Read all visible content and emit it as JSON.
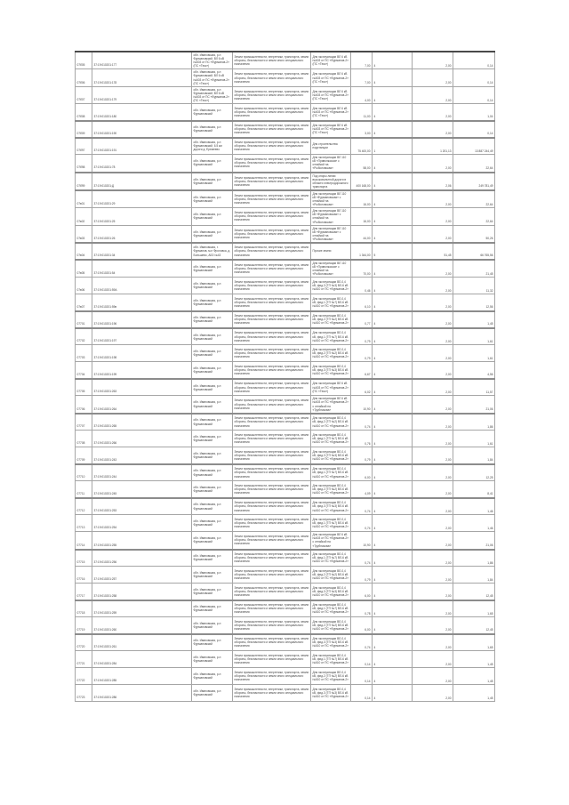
{
  "document": {
    "kind": "land-parcel valuation table (continuation page, no visible headers)",
    "language": "ru"
  },
  "colors": {
    "page_background": "#ffffff",
    "grid_border": "#a6a6a6",
    "thick_border": "#8c8c8c",
    "outer_border": "#6f6f6f",
    "text": "#3f3f3f"
  },
  "addresses": {
    "A1": "обл. Ивановская, р-н Фурмановский, ВЛ 6 кВ №603 от ПС «Фурманов-2» (ПС «Текс»)",
    "A2": "обл. Ивановская, р-н Фурмановский",
    "A3": "обл. Ивановская, р-н Фурмановский, 6.5 км дороги д. Еремеево",
    "A4": "обл. Ивановская, г. Фурманов, м-н Фроловка, д. Большево, АБЗ №43"
  },
  "shared": {
    "category": "Земли промышленности, энергетики, транспорта, земли обороны, безопасности и земли иного специального назначения"
  },
  "uses": {
    "U1": "Для эксплуатации ВЛ 6 кВ №603 от ПС «Фурманов-2» (ПС «Текс»)",
    "U2": "Для строительства подстанции",
    "U3": "Для эксплуатации ВЛ 110 кВ «Приволжская» с отпайкой на «Рыболовская»",
    "U4": "Под опоры линии высоковольтной дороги в области электродорожного транспорта",
    "U5": "Для эксплуатации ВЛ 110 кВ «Фурмановская» с отпайкой на «Рыболовская»",
    "U6": "Прочие земли",
    "U7": "Для эксплуатации ВЛ-0,4 кВ, фид.1 (ТП №7) ВЛ-6 кВ №610 от ПС «Фурманов-2»",
    "U8": "Для эксплуатации ВЛ-0,4 кВ, фид.2 (ТП №2) ВЛ-6 кВ №610 от ПС «Фурманов-2»",
    "U9": "Для эксплуатации ВЛ-0,4 кВ, фид.3 (ТП №3) ВЛ-6 кВ №610 от ПС «Фурманов-2»",
    "U10": "Для эксплуатации ВЛ 6 кВ №603 от ПС «Фурманов-2» с отпайкой на «Трубникова»"
  },
  "table": {
    "columns": [
      "номер",
      "кадастровый номер",
      "местоположение",
      "категория земель",
      "разрешённое использование",
      "площадь",
      "код",
      "ставка",
      "кадастровая стоимость"
    ],
    "rows": [
      {
        "id": "07б05",
        "cad": "37:19:010201:177",
        "addr": "A1",
        "use": "U1",
        "area": "7,00",
        "code": "4",
        "rate": "2,00",
        "value": "0,14",
        "sep": 0
      },
      {
        "id": "07б06",
        "cad": "37:19:010201:178",
        "addr": "A1",
        "use": "U1",
        "area": "7,00",
        "code": "4",
        "rate": "2,00",
        "value": "0,14",
        "sep": 0
      },
      {
        "id": "07б07",
        "cad": "37:19:010201:179",
        "addr": "A1",
        "use": "U1",
        "area": "4,00",
        "code": "4",
        "rate": "2,00",
        "value": "0,14",
        "sep": 0
      },
      {
        "id": "07б08",
        "cad": "37:19:010201:180",
        "addr": "A2",
        "use": "U1",
        "area": "11,00",
        "code": "4",
        "rate": "2,00",
        "value": "1,04",
        "sep": 1
      },
      {
        "id": "07б09",
        "cad": "37:19:010201:190",
        "addr": "A2",
        "use": "U1",
        "area": "3,00",
        "code": "4",
        "rate": "2,00",
        "value": "0,14",
        "sep": 1
      },
      {
        "id": "07б97",
        "cad": "37:19:010201:191",
        "addr": "A3",
        "use": "U2",
        "area": "75 400,00",
        "code": "1",
        "rate": "1 201,13",
        "value": "13 887 244,49",
        "sep": 0
      },
      {
        "id": "07б98",
        "cad": "37:19:010201:78",
        "addr": "A2",
        "use": "U3",
        "area": "58,00",
        "code": "4",
        "rate": "2,00",
        "value": "22,64",
        "sep": 1
      },
      {
        "id": "07б99",
        "cad": "37:19:010201:Д",
        "addr": "A2",
        "use": "U4",
        "area": "400 168,00",
        "code": "4",
        "rate": "2,06",
        "value": "249 781,49",
        "sep": 1
      },
      {
        "id": "07в01",
        "cad": "37:19:010201:29",
        "addr": "A2",
        "use": "U5",
        "area": "16,00",
        "code": "4",
        "rate": "2,00",
        "value": "22,64",
        "sep": 0
      },
      {
        "id": "07в02",
        "cad": "37:19:010201:25",
        "addr": "A2",
        "use": "U5",
        "area": "16,00",
        "code": "4",
        "rate": "2,00",
        "value": "22,64",
        "sep": 0
      },
      {
        "id": "07в03",
        "cad": "37:19:010201:26",
        "addr": "A2",
        "use": "U5",
        "area": "44,00",
        "code": "4",
        "rate": "2,00",
        "value": "50,26",
        "sep": 1
      },
      {
        "id": "07в04",
        "cad": "37:19:010201:34",
        "addr": "A4",
        "use": "U6",
        "area": "1 344,00",
        "code": "5",
        "rate": "51,45",
        "value": "66 765,56",
        "sep": 1
      },
      {
        "id": "07в05",
        "cad": "37:19:010201:54",
        "addr": "A2",
        "use": "U3",
        "area": "70,00",
        "code": "4",
        "rate": "2,00",
        "value": "21,45",
        "sep": 0
      },
      {
        "id": "07в06",
        "cad": "37:19:010201:59А",
        "addr": "A2",
        "use": "U9",
        "area": "0,46",
        "code": "4",
        "rate": "2,00",
        "value": "11,32",
        "sep": 0
      },
      {
        "id": "07в07",
        "cad": "37:19:010201:59в",
        "addr": "A2",
        "use": "U7",
        "area": "6,10",
        "code": "4",
        "rate": "2,00",
        "value": "12,56",
        "sep": 1
      },
      {
        "id": "07701",
        "cad": "37:19:010201:196",
        "addr": "A2",
        "use": "U8",
        "area": "0,77",
        "code": "4",
        "rate": "2,00",
        "value": "1,45",
        "sep": 1
      },
      {
        "id": "07702",
        "cad": "37:19:010201:197",
        "addr": "A2",
        "use": "U7",
        "area": "0,79",
        "code": "4",
        "rate": "2,00",
        "value": "1,61",
        "sep": 0
      },
      {
        "id": "07703",
        "cad": "37:19:010201:198",
        "addr": "A2",
        "use": "U8",
        "area": "0,79",
        "code": "4",
        "rate": "2,00",
        "value": "1,61",
        "sep": 0
      },
      {
        "id": "07704",
        "cad": "37:19:010201:199",
        "addr": "A2",
        "use": "U9",
        "area": "6,67",
        "code": "4",
        "rate": "2,00",
        "value": "4,56",
        "sep": 1
      },
      {
        "id": "07705",
        "cad": "37:19:010201:263",
        "addr": "A2",
        "use": "U1",
        "area": "6,02",
        "code": "4",
        "rate": "2,00",
        "value": "11,57",
        "sep": 0
      },
      {
        "id": "07706",
        "cad": "37:19:010201:264",
        "addr": "A2",
        "use": "U10",
        "area": "10,90",
        "code": "4",
        "rate": "2,00",
        "value": "21,06",
        "sep": 1
      },
      {
        "id": "07707",
        "cad": "37:19:010201:265",
        "addr": "A2",
        "use": "U8",
        "area": "0,74",
        "code": "4",
        "rate": "2,00",
        "value": "1,86",
        "sep": 0
      },
      {
        "id": "07708",
        "cad": "37:19:010201:266",
        "addr": "A2",
        "use": "U7",
        "area": "0,76",
        "code": "4",
        "rate": "2,00",
        "value": "1,61",
        "sep": 0
      },
      {
        "id": "07709",
        "cad": "37:19:010201:243",
        "addr": "A2",
        "use": "U9",
        "area": "0,79",
        "code": "4",
        "rate": "2,00",
        "value": "1,84",
        "sep": 1
      },
      {
        "id": "07710",
        "cad": "37:19:010201:244",
        "addr": "A2",
        "use": "U7",
        "area": "6,00",
        "code": "4",
        "rate": "2,00",
        "value": "12,25",
        "sep": 0
      },
      {
        "id": "07711",
        "cad": "37:19:010201:245",
        "addr": "A2",
        "use": "U8",
        "area": "4,09",
        "code": "4",
        "rate": "2,00",
        "value": "8,41",
        "sep": 1
      },
      {
        "id": "07712",
        "cad": "37:19:010201:253",
        "addr": "A2",
        "use": "U9",
        "area": "0,74",
        "code": "4",
        "rate": "2,00",
        "value": "1,46",
        "sep": 0
      },
      {
        "id": "07713",
        "cad": "37:19:010201:254",
        "addr": "A2",
        "use": "U7",
        "area": "0,74",
        "code": "4",
        "rate": "2,00",
        "value": "1,46",
        "sep": 0
      },
      {
        "id": "07714",
        "cad": "37:19:010201:255",
        "addr": "A2",
        "use": "U10",
        "area": "10,90",
        "code": "4",
        "rate": "2,00",
        "value": "21,06",
        "sep": 1
      },
      {
        "id": "07715",
        "cad": "37:19:010201:256",
        "addr": "A2",
        "use": "U7",
        "area": "0,74",
        "code": "4",
        "rate": "2,00",
        "value": "1,86",
        "sep": 0
      },
      {
        "id": "07716",
        "cad": "37:19:010201:257",
        "addr": "A2",
        "use": "U8",
        "area": "0,79",
        "code": "4",
        "rate": "2,00",
        "value": "1,84",
        "sep": 0
      },
      {
        "id": "07717",
        "cad": "37:19:010201:258",
        "addr": "A2",
        "use": "U9",
        "area": "6,00",
        "code": "4",
        "rate": "2,00",
        "value": "12,45",
        "sep": 1
      },
      {
        "id": "07718",
        "cad": "37:19:010201:259",
        "addr": "A2",
        "use": "U7",
        "area": "0,78",
        "code": "4",
        "rate": "2,00",
        "value": "1,65",
        "sep": 0
      },
      {
        "id": "07719",
        "cad": "37:19:010201:260",
        "addr": "A2",
        "use": "U8",
        "area": "6,00",
        "code": "4",
        "rate": "2,00",
        "value": "12,45",
        "sep": 1
      },
      {
        "id": "07720",
        "cad": "37:19:010201:261",
        "addr": "A2",
        "use": "U9",
        "area": "0,74",
        "code": "4",
        "rate": "2,00",
        "value": "1,65",
        "sep": 0
      },
      {
        "id": "07721",
        "cad": "37:19:010201:284",
        "addr": "A2",
        "use": "U7",
        "area": "0,14",
        "code": "4",
        "rate": "2,00",
        "value": "1,45",
        "sep": 0
      },
      {
        "id": "07722",
        "cad": "37:19:010201:285",
        "addr": "A2",
        "use": "U8",
        "area": "0,14",
        "code": "4",
        "rate": "2,00",
        "value": "1,45",
        "sep": 0
      },
      {
        "id": "07723",
        "cad": "37:19:010201:286",
        "addr": "A2",
        "use": "U9",
        "area": "0,14",
        "code": "4",
        "rate": "2,00",
        "value": "1,45",
        "sep": 0
      }
    ]
  }
}
